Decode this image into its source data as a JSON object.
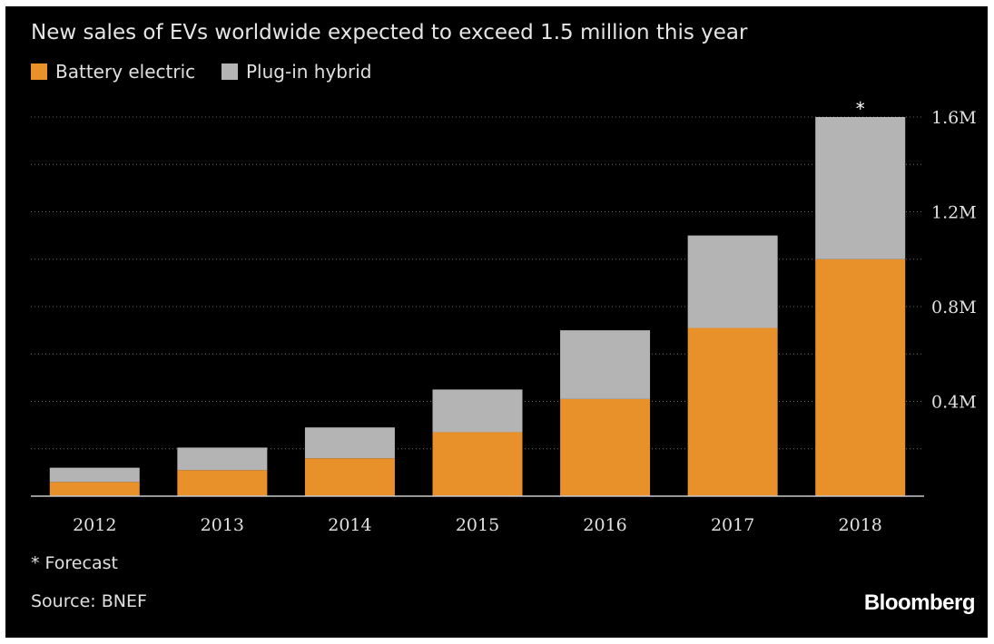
{
  "chart_data": {
    "type": "bar",
    "stacked": true,
    "title": "New sales of EVs worldwide expected to exceed 1.5 million this year",
    "categories": [
      "2012",
      "2013",
      "2014",
      "2015",
      "2016",
      "2017",
      "2018"
    ],
    "series": [
      {
        "name": "Battery electric",
        "color": "#e8912a",
        "values": [
          0.06,
          0.11,
          0.16,
          0.27,
          0.41,
          0.71,
          1.0
        ]
      },
      {
        "name": "Plug-in hybrid",
        "color": "#b4b4b4",
        "values": [
          0.06,
          0.095,
          0.13,
          0.18,
          0.29,
          0.39,
          0.6
        ]
      }
    ],
    "yticks": [
      {
        "value": 0.4,
        "label": "0.4M"
      },
      {
        "value": 0.8,
        "label": "0.8M"
      },
      {
        "value": 1.2,
        "label": "1.2M"
      },
      {
        "value": 1.6,
        "label": "1.6M"
      }
    ],
    "ylim": [
      0,
      1.6
    ],
    "gridlines": [
      0.2,
      0.4,
      0.6,
      0.8,
      1.0,
      1.2,
      1.4,
      1.6
    ],
    "y_axis_position": "right",
    "legend_position": "top-left",
    "annotations": [
      {
        "category": "2018",
        "text": "*"
      }
    ],
    "xlabel": "",
    "ylabel": ""
  },
  "footnote": "* Forecast",
  "source": "Source: BNEF",
  "brand": "Bloomberg"
}
